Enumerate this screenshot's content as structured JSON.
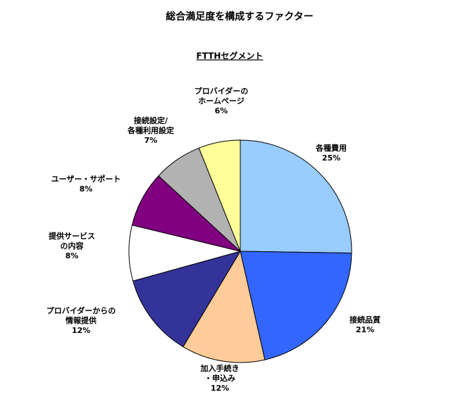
{
  "chart_data": {
    "type": "pie",
    "title": "総合満足度を構成するファクター",
    "subtitle": "FTTHセグメント",
    "categories": [
      [
        "各種費用"
      ],
      [
        "接続品質"
      ],
      [
        "加入手続き",
        "・申込み"
      ],
      [
        "プロバイダーからの",
        "情報提供"
      ],
      [
        "提供サービス",
        "の内容"
      ],
      [
        "ユーザー・サポート"
      ],
      [
        "接続設定/",
        "各種利用設定"
      ],
      [
        "プロバイダーの",
        "ホームページ"
      ]
    ],
    "values": [
      25,
      21,
      12,
      12,
      8,
      8,
      7,
      6
    ],
    "value_labels": [
      "25%",
      "21%",
      "12%",
      "12%",
      "8%",
      "8%",
      "7%",
      "6%"
    ],
    "colors": [
      "#99ccff",
      "#3366ff",
      "#ffcc99",
      "#333399",
      "#ffffff",
      "#800080",
      "#b2b2b2",
      "#ffff99"
    ]
  }
}
